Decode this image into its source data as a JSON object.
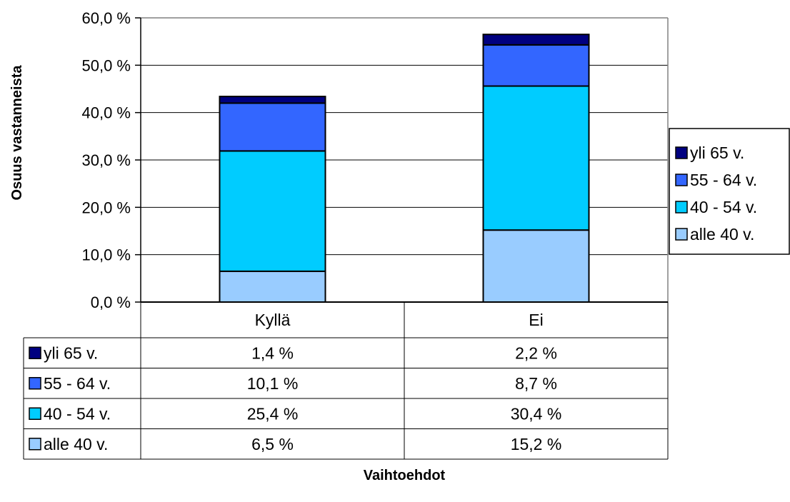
{
  "chart_data": {
    "type": "stacked-bar",
    "ylabel": "Osuus vastanneista",
    "xlabel": "Vaihtoehdot",
    "categories": [
      "Kyllä",
      "Ei"
    ],
    "ylim": [
      0,
      60
    ],
    "y_tick_step": 10,
    "y_tick_labels": [
      "0,0 %",
      "10,0 %",
      "20,0 %",
      "30,0 %",
      "40,0 %",
      "50,0 %",
      "60,0 %"
    ],
    "grid": true,
    "legend_position": "right",
    "series": [
      {
        "name": "alle 40 v.",
        "color": "#99CCFF",
        "values": [
          6.5,
          15.2
        ],
        "labels": [
          "6,5 %",
          "15,2 %"
        ]
      },
      {
        "name": "40 - 54 v.",
        "color": "#00CCFF",
        "values": [
          25.4,
          30.4
        ],
        "labels": [
          "25,4 %",
          "30,4 %"
        ]
      },
      {
        "name": "55 - 64 v.",
        "color": "#3366FF",
        "values": [
          10.1,
          8.7
        ],
        "labels": [
          "10,1 %",
          "8,7 %"
        ]
      },
      {
        "name": "yli 65 v.",
        "color": "#000080",
        "values": [
          1.4,
          2.2
        ],
        "labels": [
          "1,4 %",
          "2,2 %"
        ]
      }
    ]
  }
}
